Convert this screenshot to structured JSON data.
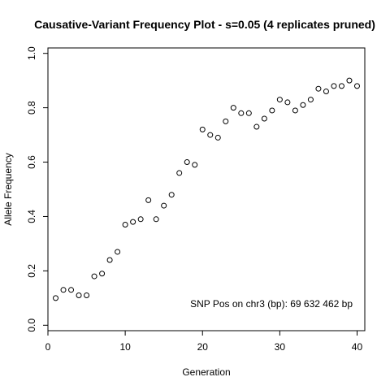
{
  "chart_data": {
    "type": "scatter",
    "title": "Causative-Variant Frequency Plot - s=0.05 (4 replicates pruned)",
    "xlabel": "Generation",
    "ylabel": "Allele Frequency",
    "xlim": [
      0,
      41
    ],
    "ylim": [
      -0.02,
      1.02
    ],
    "xticks": [
      0,
      10,
      20,
      30,
      40
    ],
    "yticks": [
      0.0,
      0.2,
      0.4,
      0.6,
      0.8,
      1.0
    ],
    "ytick_labels": [
      "0.0",
      "0.2",
      "0.4",
      "0.6",
      "0.8",
      "1.0"
    ],
    "grid": false,
    "annotation": "SNP Pos on chr3 (bp): 69 632 462 bp",
    "x": [
      1,
      2,
      3,
      4,
      5,
      6,
      7,
      8,
      9,
      10,
      11,
      12,
      13,
      14,
      15,
      16,
      17,
      18,
      19,
      20,
      21,
      22,
      23,
      24,
      25,
      26,
      27,
      28,
      29,
      30,
      31,
      32,
      33,
      34,
      35,
      36,
      37,
      38,
      39,
      40
    ],
    "y": [
      0.1,
      0.13,
      0.13,
      0.11,
      0.11,
      0.18,
      0.19,
      0.24,
      0.27,
      0.37,
      0.38,
      0.39,
      0.46,
      0.39,
      0.44,
      0.48,
      0.56,
      0.6,
      0.59,
      0.72,
      0.7,
      0.69,
      0.75,
      0.8,
      0.78,
      0.78,
      0.73,
      0.76,
      0.79,
      0.83,
      0.82,
      0.79,
      0.81,
      0.83,
      0.87,
      0.86,
      0.88,
      0.88,
      0.9,
      0.88
    ]
  }
}
